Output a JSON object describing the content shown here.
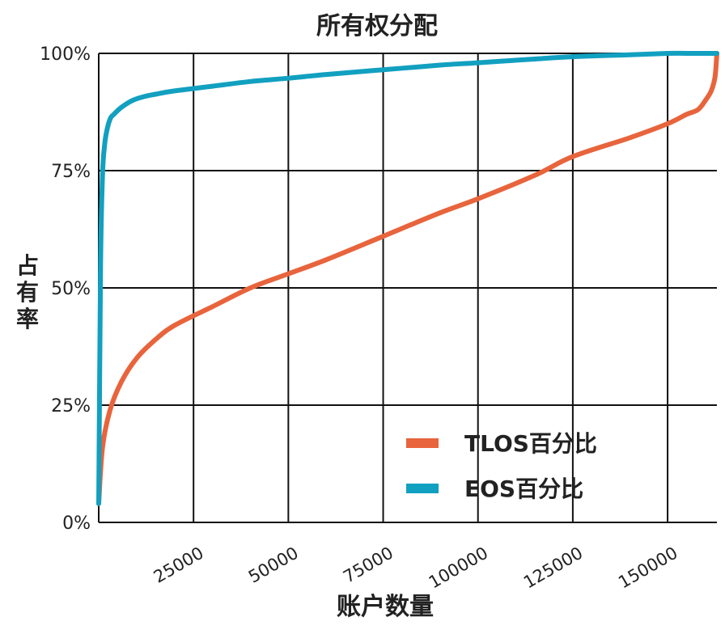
{
  "chart_data": {
    "type": "line",
    "title": "所有权分配",
    "xlabel": "账户数量",
    "ylabel": "占有率",
    "xlim": [
      0,
      163000
    ],
    "ylim": [
      0,
      100
    ],
    "x_ticks": [
      25000,
      50000,
      75000,
      100000,
      125000,
      150000
    ],
    "x_tick_labels": [
      "25000",
      "50000",
      "75000",
      "100000",
      "125000",
      "150000"
    ],
    "y_ticks": [
      0,
      25,
      50,
      75,
      100
    ],
    "y_tick_labels": [
      "0%",
      "25%",
      "50%",
      "75%",
      "100%"
    ],
    "grid": true,
    "legend_position": "bottom-right",
    "series": [
      {
        "name": "TLOS百分比",
        "color": "#e8643c",
        "x": [
          0,
          1000,
          3000,
          6000,
          10000,
          15000,
          20000,
          30000,
          40000,
          50000,
          60000,
          75000,
          90000,
          100000,
          115000,
          125000,
          140000,
          150000,
          155000,
          158000,
          160000,
          161500,
          162500,
          163000
        ],
        "y": [
          4,
          16,
          24,
          30,
          35,
          39,
          42,
          46,
          50,
          53,
          56,
          61,
          66,
          69,
          74,
          78,
          82,
          85,
          87,
          88,
          90,
          92,
          95,
          100
        ]
      },
      {
        "name": "EOS百分比",
        "color": "#12a0c0",
        "x": [
          0,
          500,
          1000,
          1500,
          2000,
          3000,
          4000,
          6000,
          9000,
          12000,
          15000,
          20000,
          30000,
          40000,
          50000,
          60000,
          75000,
          90000,
          100000,
          115000,
          125000,
          140000,
          150000,
          155000,
          160000,
          163000
        ],
        "y": [
          4,
          55,
          74,
          80,
          83,
          86,
          87,
          88.5,
          90,
          90.8,
          91.3,
          92,
          93,
          94,
          94.7,
          95.5,
          96.5,
          97.5,
          98,
          98.8,
          99.3,
          99.7,
          100,
          100,
          100,
          100
        ]
      }
    ]
  }
}
